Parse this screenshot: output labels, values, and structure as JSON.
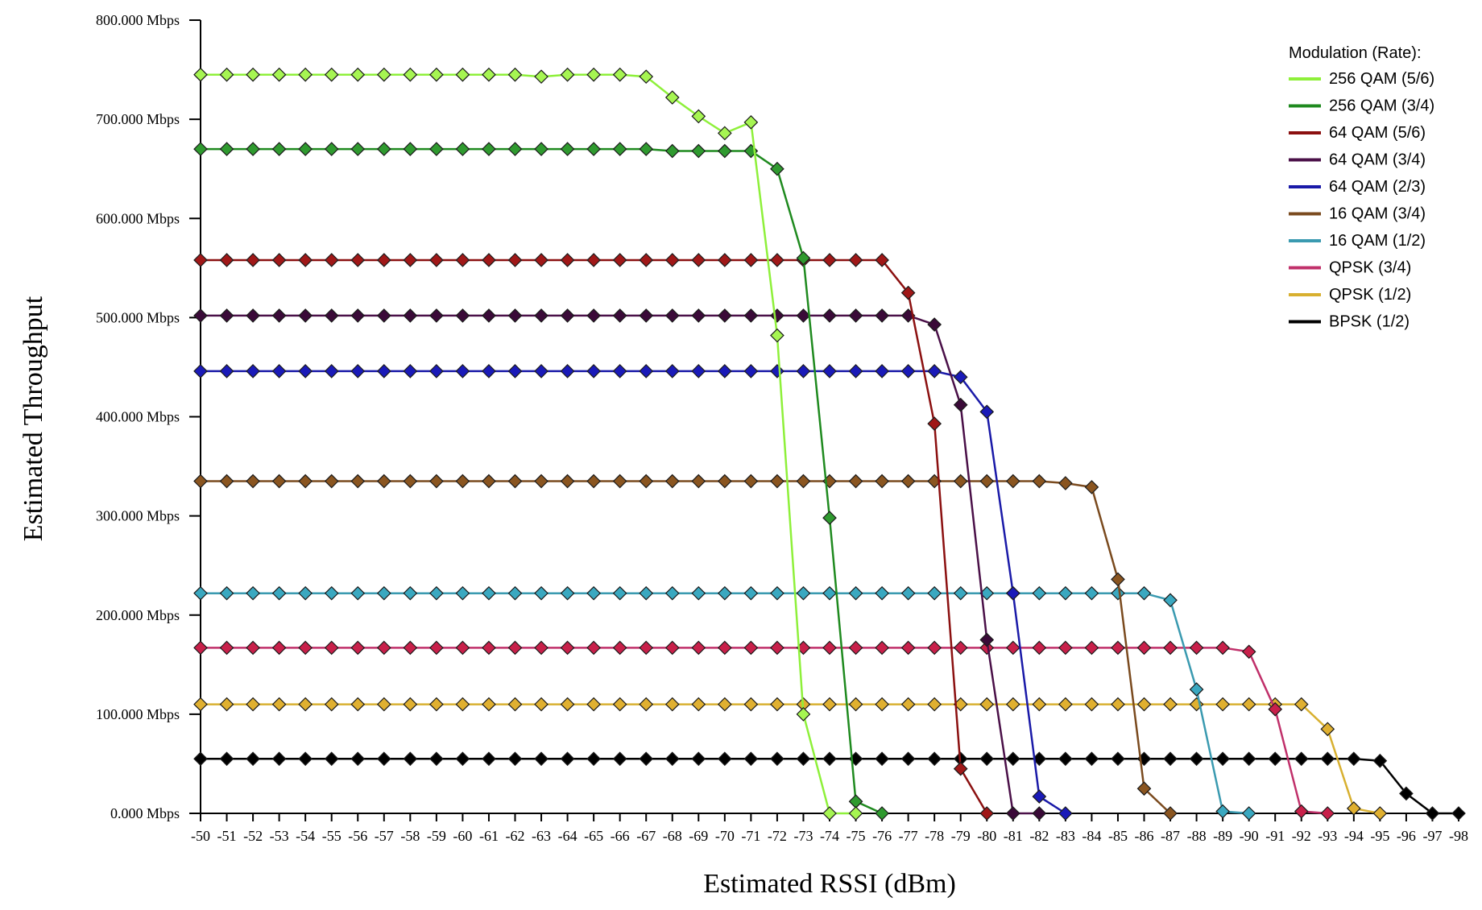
{
  "chart_data": {
    "type": "line",
    "xlabel": "Estimated RSSI (dBm)",
    "ylabel": "Estimated Throughput",
    "x": [
      -50,
      -51,
      -52,
      -53,
      -54,
      -55,
      -56,
      -57,
      -58,
      -59,
      -60,
      -61,
      -62,
      -63,
      -64,
      -65,
      -66,
      -67,
      -68,
      -69,
      -70,
      -71,
      -72,
      -73,
      -74,
      -75,
      -76,
      -77,
      -78,
      -79,
      -80,
      -81,
      -82,
      -83,
      -84,
      -85,
      -86,
      -87,
      -88,
      -89,
      -90,
      -91,
      -92,
      -93,
      -94,
      -95,
      -96,
      -97,
      -98
    ],
    "x_tick_labels": [
      "-50",
      "-51",
      "-52",
      "-53",
      "-54",
      "-55",
      "-56",
      "-57",
      "-58",
      "-59",
      "-60",
      "-61",
      "-62",
      "-63",
      "-64",
      "-65",
      "-66",
      "-67",
      "-68",
      "-69",
      "-70",
      "-71",
      "-72",
      "-73",
      "-74",
      "-75",
      "-76",
      "-77",
      "-78",
      "-79",
      "-80",
      "-81",
      "-82",
      "-83",
      "-84",
      "-85",
      "-86",
      "-87",
      "-88",
      "-89",
      "-90",
      "-91",
      "-92",
      "-93",
      "-94",
      "-95",
      "-96",
      "-97",
      "-98"
    ],
    "xlim": [
      -50,
      -98
    ],
    "ylim": [
      0,
      800
    ],
    "y_ticks": [
      0,
      100,
      200,
      300,
      400,
      500,
      600,
      700,
      800
    ],
    "y_tick_labels": [
      "0.000 Mbps",
      "100.000 Mbps",
      "200.000 Mbps",
      "300.000 Mbps",
      "400.000 Mbps",
      "500.000 Mbps",
      "600.000 Mbps",
      "700.000 Mbps",
      "800.000 Mbps"
    ],
    "legend_title": "Modulation (Rate):",
    "legend_position": "top-right",
    "grid": false,
    "series": [
      {
        "name": "256 QAM (5/6)",
        "color": "#8ef03a",
        "fill": "#a6f552",
        "x": [
          -50,
          -51,
          -52,
          -53,
          -54,
          -55,
          -56,
          -57,
          -58,
          -59,
          -60,
          -61,
          -62,
          -63,
          -64,
          -65,
          -66,
          -67,
          -68,
          -69,
          -70,
          -71,
          -72,
          -73,
          -74,
          -75
        ],
        "values": [
          745,
          745,
          745,
          745,
          745,
          745,
          745,
          745,
          745,
          745,
          745,
          745,
          745,
          743,
          745,
          745,
          745,
          743,
          722,
          703,
          686,
          697,
          482,
          100,
          0,
          0
        ]
      },
      {
        "name": "256 QAM (3/4)",
        "color": "#1f8a1f",
        "fill": "#2f9a2f",
        "x": [
          -50,
          -51,
          -52,
          -53,
          -54,
          -55,
          -56,
          -57,
          -58,
          -59,
          -60,
          -61,
          -62,
          -63,
          -64,
          -65,
          -66,
          -67,
          -68,
          -69,
          -70,
          -71,
          -72,
          -73,
          -74,
          -75,
          -76
        ],
        "values": [
          670,
          670,
          670,
          670,
          670,
          670,
          670,
          670,
          670,
          670,
          670,
          670,
          670,
          670,
          670,
          670,
          670,
          670,
          668,
          668,
          668,
          668,
          650,
          560,
          298,
          12,
          0
        ]
      },
      {
        "name": "64 QAM (5/6)",
        "color": "#8b1010",
        "fill": "#a01818",
        "x": [
          -50,
          -51,
          -52,
          -53,
          -54,
          -55,
          -56,
          -57,
          -58,
          -59,
          -60,
          -61,
          -62,
          -63,
          -64,
          -65,
          -66,
          -67,
          -68,
          -69,
          -70,
          -71,
          -72,
          -73,
          -74,
          -75,
          -76,
          -77,
          -78,
          -79,
          -80
        ],
        "values": [
          558,
          558,
          558,
          558,
          558,
          558,
          558,
          558,
          558,
          558,
          558,
          558,
          558,
          558,
          558,
          558,
          558,
          558,
          558,
          558,
          558,
          558,
          558,
          558,
          558,
          558,
          558,
          525,
          393,
          45,
          0
        ]
      },
      {
        "name": "64 QAM (3/4)",
        "color": "#4a1048",
        "fill": "#3a0a38",
        "x": [
          -50,
          -51,
          -52,
          -53,
          -54,
          -55,
          -56,
          -57,
          -58,
          -59,
          -60,
          -61,
          -62,
          -63,
          -64,
          -65,
          -66,
          -67,
          -68,
          -69,
          -70,
          -71,
          -72,
          -73,
          -74,
          -75,
          -76,
          -77,
          -78,
          -79,
          -80,
          -81,
          -82
        ],
        "values": [
          502,
          502,
          502,
          502,
          502,
          502,
          502,
          502,
          502,
          502,
          502,
          502,
          502,
          502,
          502,
          502,
          502,
          502,
          502,
          502,
          502,
          502,
          502,
          502,
          502,
          502,
          502,
          502,
          493,
          412,
          175,
          0,
          0
        ]
      },
      {
        "name": "64 QAM (2/3)",
        "color": "#1a1aa8",
        "fill": "#1a1ab8",
        "x": [
          -50,
          -51,
          -52,
          -53,
          -54,
          -55,
          -56,
          -57,
          -58,
          -59,
          -60,
          -61,
          -62,
          -63,
          -64,
          -65,
          -66,
          -67,
          -68,
          -69,
          -70,
          -71,
          -72,
          -73,
          -74,
          -75,
          -76,
          -77,
          -78,
          -79,
          -80,
          -81,
          -82,
          -83
        ],
        "values": [
          446,
          446,
          446,
          446,
          446,
          446,
          446,
          446,
          446,
          446,
          446,
          446,
          446,
          446,
          446,
          446,
          446,
          446,
          446,
          446,
          446,
          446,
          446,
          446,
          446,
          446,
          446,
          446,
          446,
          440,
          405,
          222,
          17,
          0
        ]
      },
      {
        "name": "16 QAM (3/4)",
        "color": "#7a4a1e",
        "fill": "#8a5520",
        "x": [
          -50,
          -51,
          -52,
          -53,
          -54,
          -55,
          -56,
          -57,
          -58,
          -59,
          -60,
          -61,
          -62,
          -63,
          -64,
          -65,
          -66,
          -67,
          -68,
          -69,
          -70,
          -71,
          -72,
          -73,
          -74,
          -75,
          -76,
          -77,
          -78,
          -79,
          -80,
          -81,
          -82,
          -83,
          -84,
          -85,
          -86,
          -87
        ],
        "values": [
          335,
          335,
          335,
          335,
          335,
          335,
          335,
          335,
          335,
          335,
          335,
          335,
          335,
          335,
          335,
          335,
          335,
          335,
          335,
          335,
          335,
          335,
          335,
          335,
          335,
          335,
          335,
          335,
          335,
          335,
          335,
          335,
          335,
          333,
          329,
          236,
          25,
          0
        ]
      },
      {
        "name": "16 QAM (1/2)",
        "color": "#3a9ab0",
        "fill": "#3aa8c0",
        "x": [
          -50,
          -51,
          -52,
          -53,
          -54,
          -55,
          -56,
          -57,
          -58,
          -59,
          -60,
          -61,
          -62,
          -63,
          -64,
          -65,
          -66,
          -67,
          -68,
          -69,
          -70,
          -71,
          -72,
          -73,
          -74,
          -75,
          -76,
          -77,
          -78,
          -79,
          -80,
          -81,
          -82,
          -83,
          -84,
          -85,
          -86,
          -87,
          -88,
          -89,
          -90
        ],
        "values": [
          222,
          222,
          222,
          222,
          222,
          222,
          222,
          222,
          222,
          222,
          222,
          222,
          222,
          222,
          222,
          222,
          222,
          222,
          222,
          222,
          222,
          222,
          222,
          222,
          222,
          222,
          222,
          222,
          222,
          222,
          222,
          222,
          222,
          222,
          222,
          222,
          222,
          215,
          125,
          2,
          0
        ]
      },
      {
        "name": "QPSK (3/4)",
        "color": "#c0306a",
        "fill": "#c8204a",
        "x": [
          -50,
          -51,
          -52,
          -53,
          -54,
          -55,
          -56,
          -57,
          -58,
          -59,
          -60,
          -61,
          -62,
          -63,
          -64,
          -65,
          -66,
          -67,
          -68,
          -69,
          -70,
          -71,
          -72,
          -73,
          -74,
          -75,
          -76,
          -77,
          -78,
          -79,
          -80,
          -81,
          -82,
          -83,
          -84,
          -85,
          -86,
          -87,
          -88,
          -89,
          -90,
          -91,
          -92,
          -93
        ],
        "values": [
          167,
          167,
          167,
          167,
          167,
          167,
          167,
          167,
          167,
          167,
          167,
          167,
          167,
          167,
          167,
          167,
          167,
          167,
          167,
          167,
          167,
          167,
          167,
          167,
          167,
          167,
          167,
          167,
          167,
          167,
          167,
          167,
          167,
          167,
          167,
          167,
          167,
          167,
          167,
          167,
          163,
          105,
          2,
          0
        ]
      },
      {
        "name": "QPSK (1/2)",
        "color": "#d8b030",
        "fill": "#e0b030",
        "x": [
          -50,
          -51,
          -52,
          -53,
          -54,
          -55,
          -56,
          -57,
          -58,
          -59,
          -60,
          -61,
          -62,
          -63,
          -64,
          -65,
          -66,
          -67,
          -68,
          -69,
          -70,
          -71,
          -72,
          -73,
          -74,
          -75,
          -76,
          -77,
          -78,
          -79,
          -80,
          -81,
          -82,
          -83,
          -84,
          -85,
          -86,
          -87,
          -88,
          -89,
          -90,
          -91,
          -92,
          -93,
          -94,
          -95
        ],
        "values": [
          110,
          110,
          110,
          110,
          110,
          110,
          110,
          110,
          110,
          110,
          110,
          110,
          110,
          110,
          110,
          110,
          110,
          110,
          110,
          110,
          110,
          110,
          110,
          110,
          110,
          110,
          110,
          110,
          110,
          110,
          110,
          110,
          110,
          110,
          110,
          110,
          110,
          110,
          110,
          110,
          110,
          110,
          110,
          85,
          5,
          0
        ]
      },
      {
        "name": "BPSK (1/2)",
        "color": "#000000",
        "fill": "#000000",
        "x": [
          -50,
          -51,
          -52,
          -53,
          -54,
          -55,
          -56,
          -57,
          -58,
          -59,
          -60,
          -61,
          -62,
          -63,
          -64,
          -65,
          -66,
          -67,
          -68,
          -69,
          -70,
          -71,
          -72,
          -73,
          -74,
          -75,
          -76,
          -77,
          -78,
          -79,
          -80,
          -81,
          -82,
          -83,
          -84,
          -85,
          -86,
          -87,
          -88,
          -89,
          -90,
          -91,
          -92,
          -93,
          -94,
          -95,
          -96,
          -97,
          -98
        ],
        "values": [
          55,
          55,
          55,
          55,
          55,
          55,
          55,
          55,
          55,
          55,
          55,
          55,
          55,
          55,
          55,
          55,
          55,
          55,
          55,
          55,
          55,
          55,
          55,
          55,
          55,
          55,
          55,
          55,
          55,
          55,
          55,
          55,
          55,
          55,
          55,
          55,
          55,
          55,
          55,
          55,
          55,
          55,
          55,
          55,
          55,
          53,
          20,
          0,
          0
        ]
      }
    ]
  }
}
